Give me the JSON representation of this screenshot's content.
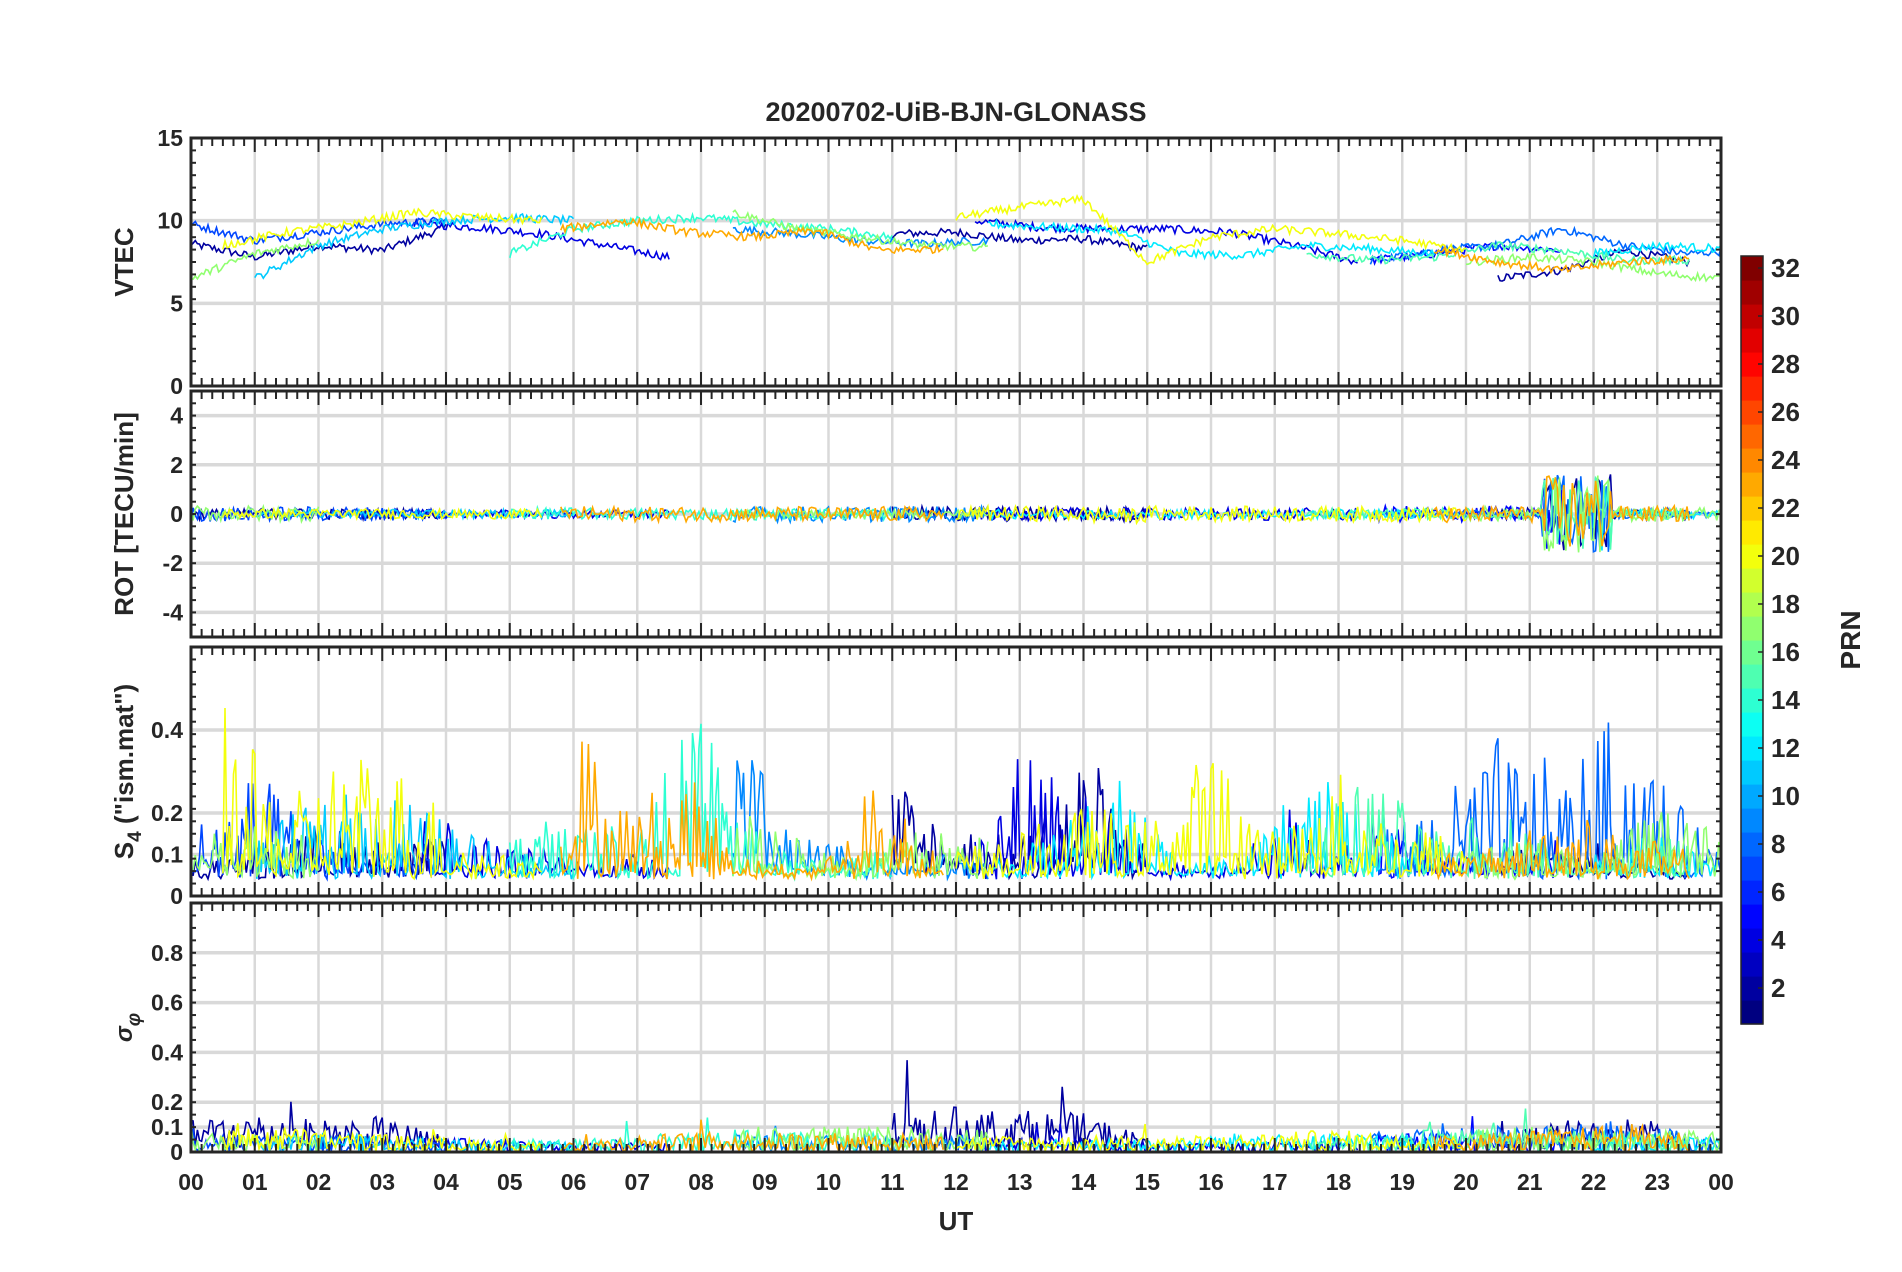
{
  "chart_data": {
    "type": "line",
    "title": "20200702-UiB-BJN-GLONASS",
    "xlabel": "UT",
    "xlim": [
      0,
      24
    ],
    "x_tick_labels": [
      "00",
      "01",
      "02",
      "03",
      "04",
      "05",
      "06",
      "07",
      "08",
      "09",
      "10",
      "11",
      "12",
      "13",
      "14",
      "15",
      "16",
      "17",
      "18",
      "19",
      "20",
      "21",
      "22",
      "23",
      "00"
    ],
    "panels": [
      {
        "key": "vtec",
        "ylabel": "VTEC",
        "ylim": [
          0,
          15
        ],
        "yticks": [
          0,
          5,
          10,
          15
        ]
      },
      {
        "key": "rot",
        "ylabel": "ROT [TECU/min]",
        "ylim": [
          -5,
          5
        ],
        "yticks": [
          -4,
          -2,
          0,
          2,
          4
        ]
      },
      {
        "key": "s4",
        "ylabel": "S",
        "ylabel_sub": "4",
        "ylabel_suffix": " (\"ism.mat\")",
        "ylim": [
          0,
          0.6
        ],
        "yticks": [
          0,
          0.1,
          0.2,
          0.4
        ]
      },
      {
        "key": "sig",
        "ylabel": "σ",
        "ylabel_sub": "φ",
        "ylim": [
          0,
          1
        ],
        "yticks": [
          0,
          0.1,
          0.2,
          0.4,
          0.6,
          0.8
        ]
      }
    ],
    "colorbar": {
      "label": "PRN",
      "range": [
        1,
        32
      ],
      "ticks": [
        2,
        4,
        6,
        8,
        10,
        12,
        14,
        16,
        18,
        20,
        22,
        24,
        26,
        28,
        30,
        32
      ],
      "colormap": "jet"
    },
    "rot_disturbed_hours": [
      21.2,
      22.3
    ],
    "series": [
      {
        "prn": 2,
        "t0": 0,
        "vtec": [
          8.6,
          7.8,
          8.5,
          8.2,
          9.6
        ],
        "s4": [
          0.06,
          0.08,
          0.12,
          0.1,
          0.09
        ],
        "sig": [
          0.1,
          0.12,
          0.1,
          0.11,
          0.05
        ]
      },
      {
        "prn": 2,
        "t0": 11,
        "vtec": [
          9.2,
          9.3,
          8.8,
          8.9,
          8.3
        ],
        "s4": [
          0.2,
          0.12,
          0.1,
          0.25,
          0.08
        ],
        "sig": [
          0.13,
          0.14,
          0.13,
          0.12,
          0.05
        ]
      },
      {
        "prn": 2,
        "t0": 20.5,
        "vtec": [
          6.5,
          7.0,
          8.2,
          7.5
        ],
        "s4": [
          0.08,
          0.1,
          0.07,
          0.07
        ],
        "sig": [
          0.05,
          0.1,
          0.08,
          0.12
        ]
      },
      {
        "prn": 4,
        "t0": 3.5,
        "vtec": [
          9.8,
          9.6,
          9.2,
          8.5,
          7.8
        ],
        "s4": [
          0.15,
          0.1,
          0.08,
          0.06,
          0.1
        ],
        "sig": [
          0.05,
          0.04,
          0.03,
          0.03,
          0.03
        ]
      },
      {
        "prn": 4,
        "t0": 12.3,
        "vtec": [
          10.0,
          9.6,
          9.5,
          9.5,
          9.3,
          8.5,
          7.5
        ],
        "s4": [
          0.1,
          0.3,
          0.12,
          0.06,
          0.05,
          0.15,
          0.08
        ],
        "sig": [
          0.04,
          0.05,
          0.04,
          0.03,
          0.03,
          0.03,
          0.03
        ]
      },
      {
        "prn": 5,
        "t0": 18.5,
        "vtec": [
          7.6,
          8.0,
          8.5,
          8.2
        ],
        "s4": [
          0.2,
          0.08,
          0.06,
          0.1
        ],
        "sig": [
          0.05,
          0.06,
          0.05,
          0.05
        ]
      },
      {
        "prn": 7,
        "t0": 0,
        "vtec": [
          9.8,
          8.8,
          9.3,
          9.8,
          10.0
        ],
        "s4": [
          0.12,
          0.2,
          0.1,
          0.08,
          0.06
        ],
        "sig": [
          0.06,
          0.05,
          0.05,
          0.04,
          0.03
        ]
      },
      {
        "prn": 8,
        "t0": 18.5,
        "vtec": [
          7.6,
          8.2,
          8.5,
          9.5,
          8.5,
          8.0,
          8.3
        ],
        "s4": [
          0.1,
          0.15,
          0.25,
          0.2,
          0.3,
          0.12,
          0.08
        ],
        "sig": [
          0.06,
          0.07,
          0.08,
          0.08,
          0.1,
          0.06,
          0.05
        ]
      },
      {
        "prn": 9,
        "t0": 8.5,
        "vtec": [
          9.5,
          9.2,
          8.8,
          8.6,
          8.8
        ],
        "s4": [
          0.3,
          0.1,
          0.08,
          0.06,
          0.1
        ],
        "sig": [
          0.06,
          0.05,
          0.05,
          0.05,
          0.05
        ]
      },
      {
        "prn": 11,
        "t0": 1,
        "vtec": [
          6.5,
          8.5,
          9.5,
          10.0,
          10.2,
          10.0
        ],
        "s4": [
          0.1,
          0.15,
          0.2,
          0.12,
          0.08,
          0.06
        ],
        "sig": [
          0.06,
          0.06,
          0.05,
          0.04,
          0.04,
          0.03
        ]
      },
      {
        "prn": 12,
        "t0": 12.5,
        "vtec": [
          9.8,
          9.6,
          9.4,
          8.0,
          7.9,
          8.5,
          8.3,
          8.0
        ],
        "s4": [
          0.06,
          0.1,
          0.2,
          0.08,
          0.06,
          0.2,
          0.15,
          0.06
        ],
        "sig": [
          0.04,
          0.04,
          0.04,
          0.04,
          0.06,
          0.05,
          0.06,
          0.05
        ]
      },
      {
        "prn": 12,
        "t0": 22,
        "vtec": [
          8.0,
          8.5,
          8.3
        ],
        "s4": [
          0.08,
          0.1,
          0.06
        ],
        "sig": [
          0.05,
          0.05,
          0.05
        ]
      },
      {
        "prn": 14,
        "t0": 5,
        "vtec": [
          8.0,
          9.5,
          10.0,
          10.2,
          9.8,
          9.5,
          9.0
        ],
        "s4": [
          0.12,
          0.14,
          0.12,
          0.3,
          0.08,
          0.06,
          0.08
        ],
        "sig": [
          0.04,
          0.04,
          0.05,
          0.07,
          0.07,
          0.06,
          0.06
        ]
      },
      {
        "prn": 15,
        "t0": 17.5,
        "vtec": [
          8.0,
          7.6,
          7.8,
          8.5,
          8.2,
          7.6,
          7.6
        ],
        "s4": [
          0.1,
          0.2,
          0.1,
          0.15,
          0.08,
          0.07,
          0.1
        ],
        "sig": [
          0.05,
          0.06,
          0.07,
          0.07,
          0.07,
          0.06,
          0.06
        ]
      },
      {
        "prn": 17,
        "t0": 0,
        "vtec": [
          6.5,
          8.0,
          8.8
        ],
        "s4": [
          0.1,
          0.12,
          0.1
        ],
        "sig": [
          0.06,
          0.05,
          0.05
        ]
      },
      {
        "prn": 17,
        "t0": 8.5,
        "vtec": [
          10.5,
          9.5,
          9.0,
          8.5,
          8.4
        ],
        "s4": [
          0.15,
          0.1,
          0.08,
          0.12,
          0.1
        ],
        "sig": [
          0.08,
          0.08,
          0.08,
          0.08,
          0.07
        ]
      },
      {
        "prn": 17,
        "t0": 20,
        "vtec": [
          7.5,
          7.8,
          7.5,
          6.8,
          6.5
        ],
        "s4": [
          0.08,
          0.1,
          0.07,
          0.15,
          0.1
        ],
        "sig": [
          0.07,
          0.08,
          0.07,
          0.07,
          0.06
        ]
      },
      {
        "prn": 20,
        "t0": 0.5,
        "vtec": [
          8.5,
          9.3,
          9.8,
          10.5,
          10.2,
          10.0
        ],
        "s4": [
          0.3,
          0.15,
          0.25,
          0.2,
          0.08,
          0.06
        ],
        "sig": [
          0.07,
          0.08,
          0.06,
          0.05,
          0.04,
          0.03
        ]
      },
      {
        "prn": 20,
        "t0": 12,
        "vtec": [
          10.2,
          10.8,
          11.3,
          7.5,
          9.0,
          9.5,
          9.2,
          8.8,
          8.2
        ],
        "s4": [
          0.08,
          0.1,
          0.15,
          0.12,
          0.25,
          0.1,
          0.2,
          0.12,
          0.1
        ],
        "sig": [
          0.05,
          0.05,
          0.05,
          0.05,
          0.05,
          0.06,
          0.07,
          0.05,
          0.05
        ]
      },
      {
        "prn": 23,
        "t0": 5.8,
        "vtec": [
          9.5,
          10.0,
          9.3,
          9.0,
          9.4,
          8.2,
          8.3
        ],
        "s4": [
          0.35,
          0.15,
          0.2,
          0.06,
          0.05,
          0.2,
          0.06
        ],
        "sig": [
          0.03,
          0.05,
          0.06,
          0.06,
          0.06,
          0.06,
          0.05
        ]
      },
      {
        "prn": 23,
        "t0": 19.5,
        "vtec": [
          8.3,
          7.5,
          7.0,
          7.5,
          7.7
        ],
        "s4": [
          0.07,
          0.08,
          0.15,
          0.1,
          0.08
        ],
        "sig": [
          0.05,
          0.06,
          0.07,
          0.09,
          0.06
        ]
      }
    ]
  }
}
